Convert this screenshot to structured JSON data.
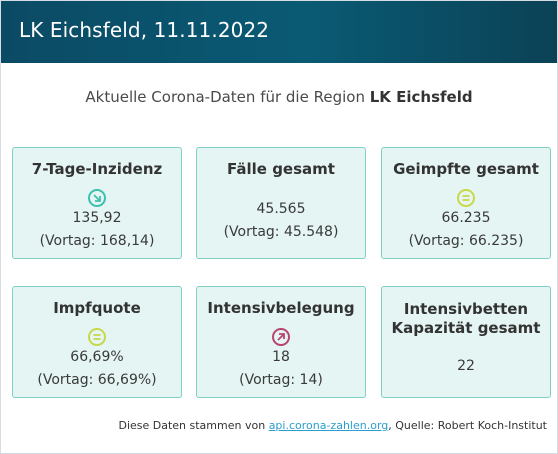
{
  "header": {
    "title": "LK Eichsfeld, 11.11.2022"
  },
  "subtitle": {
    "prefix": "Aktuelle Corona-Daten für die Region",
    "region": "LK Eichsfeld"
  },
  "cards": [
    {
      "title": "7-Tage-Inzidenz",
      "icon": "trend-down-icon",
      "value": "135,92",
      "previous": "(Vortag: 168,14)"
    },
    {
      "title": "Fälle gesamt",
      "value": "45.565",
      "previous": "(Vortag: 45.548)"
    },
    {
      "title": "Geimpfte gesamt",
      "icon": "equal-icon",
      "value": "66.235",
      "previous": "(Vortag: 66.235)"
    },
    {
      "title": "Impfquote",
      "icon": "equal-icon",
      "value": "66,69%",
      "previous": "(Vortag: 66,69%)"
    },
    {
      "title": "Intensivbelegung",
      "icon": "trend-up-icon",
      "value": "18",
      "previous": "(Vortag: 14)"
    },
    {
      "title_line1": "Intensivbetten",
      "title_line2": "Kapazität gesamt",
      "value": "22"
    }
  ],
  "footer": {
    "prefix": "Diese Daten stammen von",
    "link": "api.corona-zahlen.org",
    "suffix": ", Quelle: Robert Koch-Institut"
  },
  "colors": {
    "header_bg": "#0b4a64",
    "card_bg": "#e4f5f3",
    "card_border": "#7fd0c4",
    "icon_down": "#3fbfae",
    "icon_equal": "#c8d84a",
    "icon_up": "#b8456e",
    "link": "#2a9fcf"
  }
}
